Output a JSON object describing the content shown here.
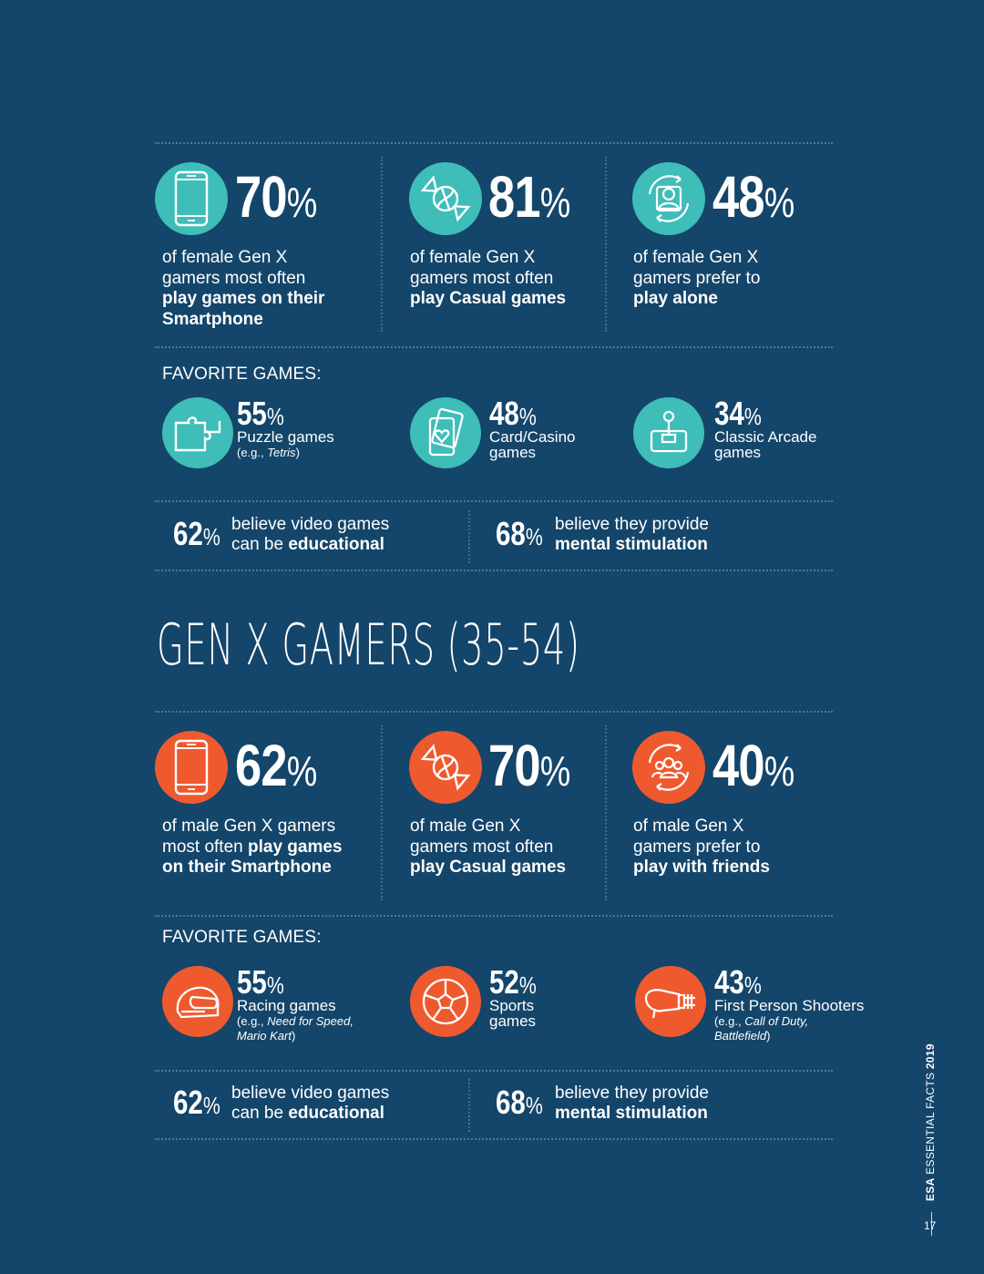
{
  "female": {
    "stats": [
      {
        "number": "70",
        "pct": "%",
        "line1": "of female Gen X",
        "line2": "gamers most often",
        "bold1": "play games on their",
        "bold2": "Smartphone",
        "icon": "smartphone-icon"
      },
      {
        "number": "81",
        "pct": "%",
        "line1": "of female Gen X",
        "line2": "gamers most often",
        "bold1": "play Casual games",
        "bold2": "",
        "icon": "candy-icon"
      },
      {
        "number": "48",
        "pct": "%",
        "line1": "of female Gen X",
        "line2": "gamers prefer to",
        "bold1": "play alone",
        "bold2": "",
        "icon": "solo-player-icon"
      }
    ],
    "favorites_label": "FAVORITE GAMES:",
    "favorites": [
      {
        "number": "55",
        "pct": "%",
        "name": "Puzzle games",
        "sub_prefix": "(e.g., ",
        "sub_italic": "Tetris",
        "sub_suffix": ")",
        "icon": "puzzle-icon"
      },
      {
        "number": "48",
        "pct": "%",
        "name": "Card/Casino",
        "name2": "games",
        "icon": "playing-cards-icon"
      },
      {
        "number": "34",
        "pct": "%",
        "name": "Classic Arcade",
        "name2": "games",
        "icon": "joystick-icon"
      }
    ],
    "beliefs": [
      {
        "number": "62",
        "pct": "%",
        "line1": "believe video games",
        "line2_plain": "can be ",
        "line2_bold": "educational"
      },
      {
        "number": "68",
        "pct": "%",
        "line1": "believe they provide",
        "line2_plain": "",
        "line2_bold": "mental stimulation"
      }
    ]
  },
  "heading": "GEN X GAMERS (35-54)",
  "male": {
    "stats": [
      {
        "number": "62",
        "pct": "%",
        "icon": "smartphone-icon"
      },
      {
        "number": "70",
        "pct": "%",
        "line1": "of male Gen X",
        "line2": "gamers most often",
        "bold1": "play Casual games",
        "icon": "candy-icon"
      },
      {
        "number": "40",
        "pct": "%",
        "line1": "of male Gen X",
        "line2": "gamers prefer to",
        "bold1": "play with friends",
        "icon": "group-players-icon"
      }
    ],
    "stat1_text": {
      "l1": "of male Gen X gamers",
      "l2_plain": "most often ",
      "l2_bold": "play games",
      "l3": "on their Smartphone"
    },
    "favorites_label": "FAVORITE GAMES:",
    "favorites": [
      {
        "number": "55",
        "pct": "%",
        "name": "Racing games",
        "sub_line1_prefix": "(e.g., ",
        "sub_line1_italic": "Need for Speed,",
        "sub_line2_italic": "Mario Kart",
        "sub_line2_suffix": ")",
        "icon": "racing-helmet-icon"
      },
      {
        "number": "52",
        "pct": "%",
        "name": "Sports",
        "name2": "games",
        "icon": "soccer-ball-icon"
      },
      {
        "number": "43",
        "pct": "%",
        "name": "First Person Shooters",
        "sub_line1_prefix": "(e.g., ",
        "sub_line1_italic": "Call of Duty,",
        "sub_line2_italic": "Battlefield",
        "sub_line2_suffix": ")",
        "icon": "blaster-gun-icon"
      }
    ],
    "beliefs": [
      {
        "number": "62",
        "pct": "%",
        "line1": "believe video games",
        "line2_plain": "can be ",
        "line2_bold": "educational"
      },
      {
        "number": "68",
        "pct": "%",
        "line1": "believe they provide",
        "line2_plain": "",
        "line2_bold": "mental stimulation"
      }
    ]
  },
  "footer": {
    "brand": "ESA",
    "title": " ESSENTIAL FACTS ",
    "year": "2019",
    "page": "17"
  },
  "colors": {
    "background": "#14456a",
    "teal": "#3fbdb8",
    "orange": "#ee5a2e",
    "text": "#ffffff"
  }
}
